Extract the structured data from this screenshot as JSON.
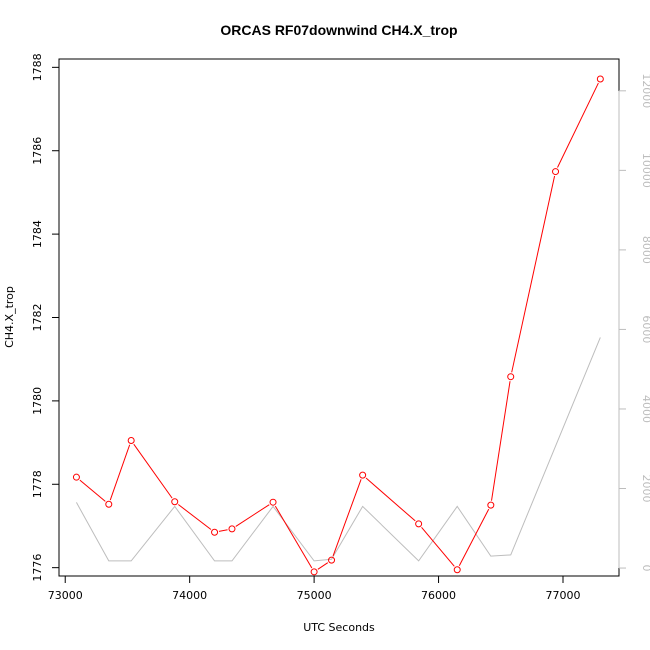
{
  "chart_data": {
    "type": "line",
    "title": "ORCAS RF07downwind CH4.X_trop",
    "xlabel": "UTC Seconds",
    "ylabel": "CH4.X_trop",
    "xlim": [
      72950,
      77450
    ],
    "ylim": [
      1775.8,
      1788.2
    ],
    "y2lim": [
      -200,
      12800
    ],
    "x_ticks": [
      "73000",
      "74000",
      "75000",
      "76000",
      "77000"
    ],
    "y_ticks": [
      "1776",
      "1778",
      "1780",
      "1782",
      "1784",
      "1786",
      "1788"
    ],
    "y2_ticks": [
      "0",
      "2000",
      "4000",
      "6000",
      "8000",
      "10000",
      "12000"
    ],
    "grid": false,
    "series": [
      {
        "axis": "left",
        "color": "#ff0000",
        "markers": "open-circle",
        "x": [
          73090,
          73350,
          73530,
          73880,
          74200,
          74340,
          74670,
          75000,
          75140,
          75390,
          75840,
          76150,
          76420,
          76580,
          76940,
          77300
        ],
        "y": [
          1778.17,
          1777.52,
          1779.05,
          1777.58,
          1776.85,
          1776.93,
          1777.57,
          1775.9,
          1776.18,
          1778.22,
          1777.05,
          1775.95,
          1777.5,
          1780.58,
          1785.5,
          1787.72
        ]
      },
      {
        "axis": "right",
        "color": "#bdbdbd",
        "markers": "none",
        "x": [
          73090,
          73350,
          73530,
          73880,
          74200,
          74340,
          74670,
          75000,
          75140,
          75390,
          75840,
          76150,
          76420,
          76580,
          77300
        ],
        "y": [
          1650,
          180,
          180,
          1550,
          180,
          180,
          1550,
          180,
          220,
          1550,
          180,
          1550,
          300,
          330,
          5800
        ]
      }
    ]
  }
}
